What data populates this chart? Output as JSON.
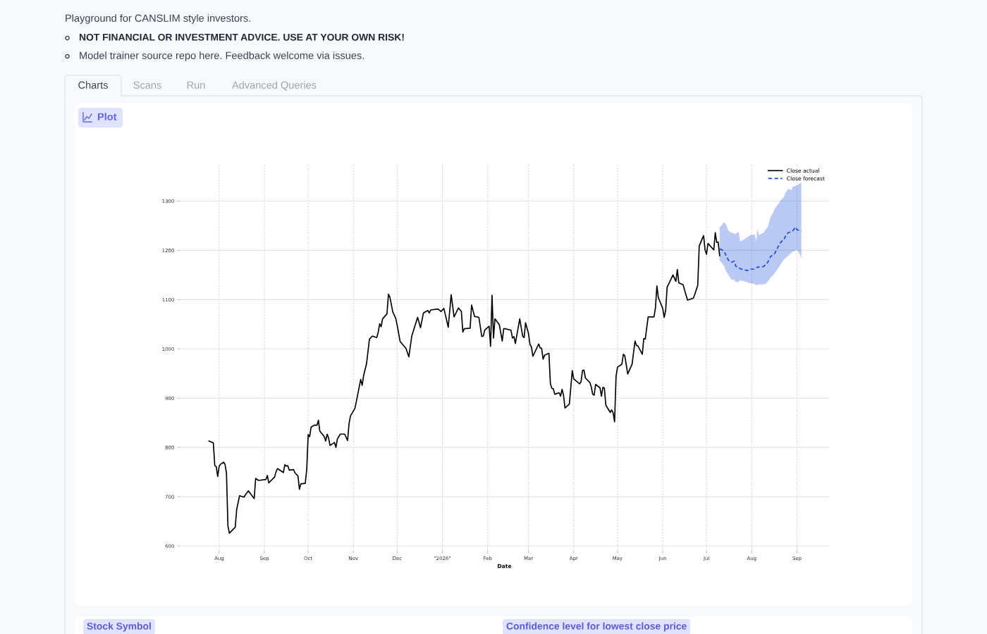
{
  "chart_data": {
    "type": "line",
    "annotations": [
      "Playground for CANSLIM style investors.",
      "NOT FINANCIAL OR INVESTMENT ADVICE. USE AT YOUR OWN RISK!",
      "Model trainer source repo here. Feedback welcome via issues.",
      "Charts",
      "Scans",
      "Run",
      "Advanced Queries",
      "Plot",
      "Stock Symbol",
      "Confidence level for lowest close price"
    ],
    "xlabel": "Date",
    "xlim": [
      "2025-07-05",
      "2026-09-23"
    ],
    "xticks": [
      {
        "value": "2025-08-01",
        "label": "Aug"
      },
      {
        "value": "2025-09-01",
        "label": "Sep"
      },
      {
        "value": "2025-10-01",
        "label": "Oct"
      },
      {
        "value": "2025-11-01",
        "label": "Nov"
      },
      {
        "value": "2025-12-01",
        "label": "Dec"
      },
      {
        "value": "2026-01-01",
        "label": "\"2026\""
      },
      {
        "value": "2026-02-01",
        "label": "Feb"
      },
      {
        "value": "2026-03-01",
        "label": "Mar"
      },
      {
        "value": "2026-04-01",
        "label": "Apr"
      },
      {
        "value": "2026-05-01",
        "label": "May"
      },
      {
        "value": "2026-06-01",
        "label": "Jun"
      },
      {
        "value": "2026-07-01",
        "label": "Jul"
      },
      {
        "value": "2026-08-01",
        "label": "Aug"
      },
      {
        "value": "2026-09-01",
        "label": "Sep"
      }
    ],
    "ylim": [
      590,
      1375
    ],
    "yticks": [
      600,
      700,
      800,
      900,
      1000,
      1100,
      1200,
      1300
    ],
    "grid": true,
    "legend": "top right",
    "series": [
      {
        "name": "Close actual",
        "color": "#000000",
        "line_style": "solid",
        "x": [
          "2025-07-25",
          "2025-07-28",
          "2025-07-29",
          "2025-07-30",
          "2025-07-31",
          "2025-08-01",
          "2025-08-02",
          "2025-08-04",
          "2025-08-05",
          "2025-08-06",
          "2025-08-07",
          "2025-08-08",
          "2025-08-12",
          "2025-08-13",
          "2025-08-15",
          "2025-08-18",
          "2025-08-19",
          "2025-08-21",
          "2025-08-25",
          "2025-08-26",
          "2025-08-28",
          "2025-09-02",
          "2025-09-03",
          "2025-09-04",
          "2025-09-08",
          "2025-09-09",
          "2025-09-10",
          "2025-09-12",
          "2025-09-14",
          "2025-09-15",
          "2025-09-16",
          "2025-09-17",
          "2025-09-18",
          "2025-09-21",
          "2025-09-22",
          "2025-09-24",
          "2025-09-25",
          "2025-09-26",
          "2025-09-29",
          "2025-09-30",
          "2025-10-01",
          "2025-10-02",
          "2025-10-03",
          "2025-10-05",
          "2025-10-07",
          "2025-10-08",
          "2025-10-09",
          "2025-10-12",
          "2025-10-13",
          "2025-10-14",
          "2025-10-15",
          "2025-10-16",
          "2025-10-19",
          "2025-10-20",
          "2025-10-21",
          "2025-10-23",
          "2025-10-26",
          "2025-10-28",
          "2025-10-29",
          "2025-10-30",
          "2025-11-02",
          "2025-11-03",
          "2025-11-04",
          "2025-11-06",
          "2025-11-07",
          "2025-11-08",
          "2025-11-10",
          "2025-11-12",
          "2025-11-14",
          "2025-11-17",
          "2025-11-18",
          "2025-11-19",
          "2025-11-20",
          "2025-11-21",
          "2025-11-24",
          "2025-11-25",
          "2025-11-26",
          "2025-11-28",
          "2025-11-30",
          "2025-12-01",
          "2025-12-03",
          "2025-12-07",
          "2025-12-09",
          "2025-12-11",
          "2025-12-15",
          "2025-12-17",
          "2025-12-19",
          "2025-12-22",
          "2025-12-23",
          "2025-12-24",
          "2025-12-29",
          "2025-12-31",
          "2026-01-02",
          "2026-01-05",
          "2026-01-07",
          "2026-01-09",
          "2026-01-12",
          "2026-01-14",
          "2026-01-15",
          "2026-01-16",
          "2026-01-20",
          "2026-01-21",
          "2026-01-23",
          "2026-01-26",
          "2026-01-28",
          "2026-01-29",
          "2026-01-30",
          "2026-02-02",
          "2026-02-03",
          "2026-02-04",
          "2026-02-05",
          "2026-02-06",
          "2026-02-09",
          "2026-02-11",
          "2026-02-12",
          "2026-02-13",
          "2026-02-17",
          "2026-02-18",
          "2026-02-19",
          "2026-02-20",
          "2026-02-23",
          "2026-02-25",
          "2026-02-26",
          "2026-02-27",
          "2026-03-01",
          "2026-03-02",
          "2026-03-03",
          "2026-03-04",
          "2026-03-08",
          "2026-03-09",
          "2026-03-10",
          "2026-03-11",
          "2026-03-12",
          "2026-03-15",
          "2026-03-16",
          "2026-03-17",
          "2026-03-18",
          "2026-03-19",
          "2026-03-22",
          "2026-03-23",
          "2026-03-24",
          "2026-03-25",
          "2026-03-26",
          "2026-03-29",
          "2026-03-31",
          "2026-04-01",
          "2026-04-05",
          "2026-04-06",
          "2026-04-07",
          "2026-04-08",
          "2026-04-09",
          "2026-04-12",
          "2026-04-13",
          "2026-04-14",
          "2026-04-15",
          "2026-04-16",
          "2026-04-19",
          "2026-04-20",
          "2026-04-21",
          "2026-04-22",
          "2026-04-23",
          "2026-04-26",
          "2026-04-27",
          "2026-04-28",
          "2026-04-29",
          "2026-04-30",
          "2026-05-01",
          "2026-05-04",
          "2026-05-05",
          "2026-05-06",
          "2026-05-08",
          "2026-05-11",
          "2026-05-13",
          "2026-05-14",
          "2026-05-15",
          "2026-05-18",
          "2026-05-19",
          "2026-05-20",
          "2026-05-22",
          "2026-05-26",
          "2026-05-27",
          "2026-05-28",
          "2026-05-29",
          "2026-06-01",
          "2026-06-02",
          "2026-06-03",
          "2026-06-04",
          "2026-06-08",
          "2026-06-10",
          "2026-06-11",
          "2026-06-12",
          "2026-06-15",
          "2026-06-16",
          "2026-06-18",
          "2026-06-22",
          "2026-06-23",
          "2026-06-25",
          "2026-06-26",
          "2026-06-29",
          "2026-06-30",
          "2026-07-01",
          "2026-07-02",
          "2026-07-06",
          "2026-07-07",
          "2026-07-08",
          "2026-07-09",
          "2026-07-10"
        ],
        "values": [
          813,
          809,
          763,
          761,
          741,
          762,
          766,
          770,
          766,
          748,
          641,
          626,
          638,
          674,
          702,
          699,
          704,
          712,
          696,
          737,
          733,
          735,
          743,
          728,
          740,
          751,
          757,
          753,
          749,
          765,
          762,
          763,
          754,
          755,
          748,
          742,
          715,
          726,
          727,
          755,
          826,
          822,
          841,
          845,
          845,
          855,
          833,
          822,
          813,
          827,
          819,
          804,
          810,
          800,
          817,
          827,
          827,
          814,
          848,
          864,
          879,
          893,
          908,
          938,
          926,
          946,
          970,
          1020,
          1026,
          1023,
          1034,
          1051,
          1045,
          1061,
          1071,
          1111,
          1105,
          1075,
          1062,
          1048,
          1015,
          1001,
          984,
          1026,
          1064,
          1043,
          1073,
          1078,
          1073,
          1079,
          1081,
          1076,
          1082,
          1044,
          1110,
          1065,
          1083,
          1076,
          1034,
          1041,
          1042,
          1089,
          1066,
          1064,
          1025,
          1026,
          1038,
          1046,
          1005,
          1109,
          1022,
          1061,
          1049,
          1016,
          1041,
          1041,
          1038,
          1022,
          1025,
          1011,
          1061,
          1026,
          1023,
          1053,
          1031,
          1009,
          1004,
          985,
          1010,
          1002,
          1001,
          979,
          987,
          991,
          930,
          920,
          919,
          908,
          911,
          904,
          918,
          906,
          880,
          888,
          956,
          939,
          929,
          933,
          956,
          957,
          941,
          932,
          923,
          908,
          906,
          928,
          921,
          904,
          922,
          920,
          886,
          871,
          876,
          870,
          852,
          944,
          963,
          969,
          989,
          986,
          949,
          969,
          1016,
          1007,
          1006,
          989,
          1021,
          1020,
          1065,
          1065,
          1083,
          1128,
          1104,
          1082,
          1064,
          1078,
          1125,
          1150,
          1137,
          1161,
          1134,
          1130,
          1119,
          1099,
          1103,
          1111,
          1129,
          1209,
          1230,
          1201,
          1192,
          1214,
          1201,
          1236,
          1216,
          1217,
          1189
        ]
      },
      {
        "name": "Close forecast",
        "color": "#1a4bdb",
        "line_style": "dashed",
        "x": [
          "2026-07-10",
          "2026-07-11",
          "2026-07-13",
          "2026-07-14",
          "2026-07-16",
          "2026-07-18",
          "2026-07-20",
          "2026-07-21",
          "2026-07-23",
          "2026-07-24",
          "2026-07-26",
          "2026-07-29",
          "2026-07-31",
          "2026-08-03",
          "2026-08-04",
          "2026-08-05",
          "2026-08-06",
          "2026-08-09",
          "2026-08-11",
          "2026-08-12",
          "2026-08-14",
          "2026-08-16",
          "2026-08-17",
          "2026-08-19",
          "2026-08-21",
          "2026-08-23",
          "2026-08-24",
          "2026-08-26",
          "2026-08-28",
          "2026-08-29",
          "2026-08-31",
          "2026-09-01",
          "2026-09-03",
          "2026-09-04"
        ],
        "values": [
          1203,
          1202,
          1198,
          1192,
          1180,
          1176,
          1178,
          1168,
          1165,
          1163,
          1161,
          1159,
          1162,
          1162,
          1164,
          1166,
          1166,
          1167,
          1172,
          1176,
          1188,
          1191,
          1195,
          1207,
          1217,
          1222,
          1228,
          1236,
          1238,
          1239,
          1247,
          1242,
          1240,
          1239
        ],
        "lower": [
          1178,
          1177,
          1168,
          1160,
          1150,
          1141,
          1140,
          1136,
          1136,
          1139,
          1138,
          1135,
          1133,
          1132,
          1129,
          1130,
          1131,
          1131,
          1133,
          1137,
          1145,
          1151,
          1155,
          1163,
          1173,
          1181,
          1184,
          1189,
          1195,
          1197,
          1200,
          1201,
          1192,
          1183
        ],
        "upper": [
          1247,
          1250,
          1257,
          1255,
          1240,
          1236,
          1234,
          1233,
          1238,
          1218,
          1221,
          1227,
          1231,
          1232,
          1219,
          1244,
          1231,
          1236,
          1244,
          1247,
          1268,
          1278,
          1286,
          1293,
          1302,
          1308,
          1316,
          1325,
          1322,
          1329,
          1331,
          1332,
          1336,
          1337
        ]
      }
    ]
  }
}
